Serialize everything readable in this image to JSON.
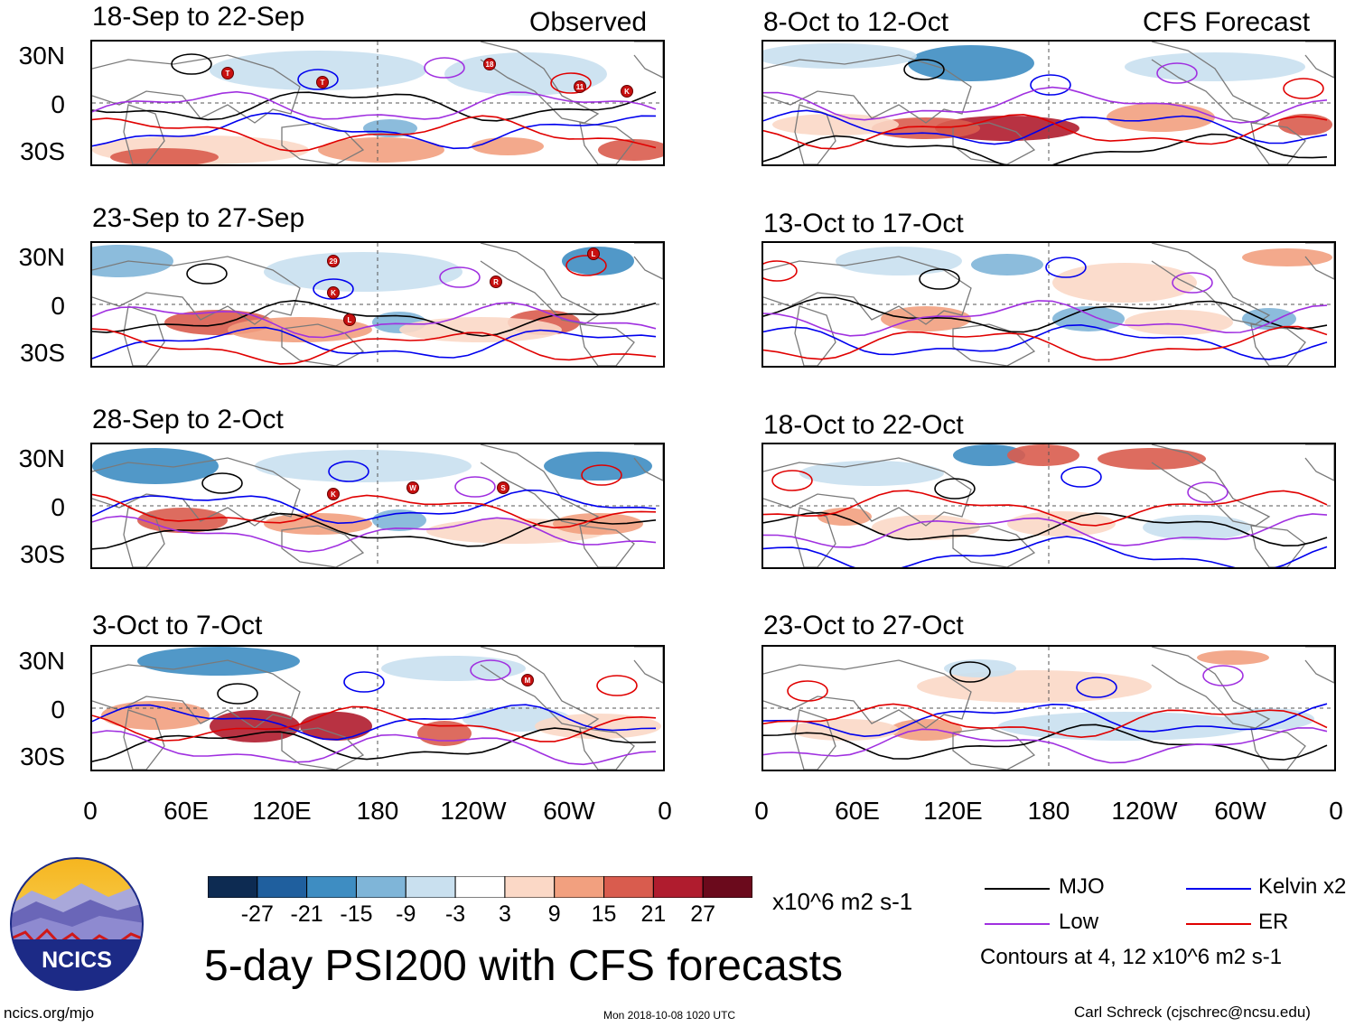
{
  "left_column_label": "Observed",
  "right_column_label": "CFS Forecast",
  "panels": [
    {
      "title": "18-Sep to 22-Sep",
      "storms": [
        "T",
        "T",
        "18",
        "11",
        "K"
      ]
    },
    {
      "title": "23-Sep to 27-Sep",
      "storms": [
        "29",
        "K",
        "L",
        "R",
        "L"
      ]
    },
    {
      "title": "28-Sep to 2-Oct",
      "storms": [
        "K",
        "W",
        "S"
      ]
    },
    {
      "title": "3-Oct to 7-Oct",
      "storms": [
        "M"
      ]
    },
    {
      "title": "8-Oct to 12-Oct",
      "storms": []
    },
    {
      "title": "13-Oct to 17-Oct",
      "storms": []
    },
    {
      "title": "18-Oct to 22-Oct",
      "storms": []
    },
    {
      "title": "23-Oct to 27-Oct",
      "storms": []
    }
  ],
  "lat_labels": [
    "30N",
    "0",
    "30S"
  ],
  "lon_labels": [
    "0",
    "60E",
    "120E",
    "180",
    "120W",
    "60W",
    "0"
  ],
  "colorbar": {
    "colors": [
      "#0d2b52",
      "#1f5f9e",
      "#3e8dc2",
      "#7fb5d8",
      "#c9e0ef",
      "#ffffff",
      "#fbd8c6",
      "#f2a07f",
      "#d95c4e",
      "#b01c2e",
      "#6b0a1c"
    ],
    "ticks": [
      "-27",
      "-21",
      "-15",
      "-9",
      "-3",
      "3",
      "9",
      "15",
      "21",
      "27"
    ],
    "units": "x10^6 m2 s-1"
  },
  "legend": {
    "items": [
      {
        "label": "MJO",
        "color": "#000000"
      },
      {
        "label": "Kelvin x2",
        "color": "#0000ee"
      },
      {
        "label": "Low",
        "color": "#a030e0"
      },
      {
        "label": "ER",
        "color": "#e00000"
      }
    ],
    "note": "Contours at 4, 12 x10^6 m2 s-1"
  },
  "logo_text": "NCICS",
  "main_title": "5-day PSI200 with CFS forecasts",
  "footer": {
    "left": "ncics.org/mjo",
    "center": "Mon 2018-10-08 1020 UTC",
    "right": "Carl Schreck (cjschrec@ncsu.edu)"
  }
}
